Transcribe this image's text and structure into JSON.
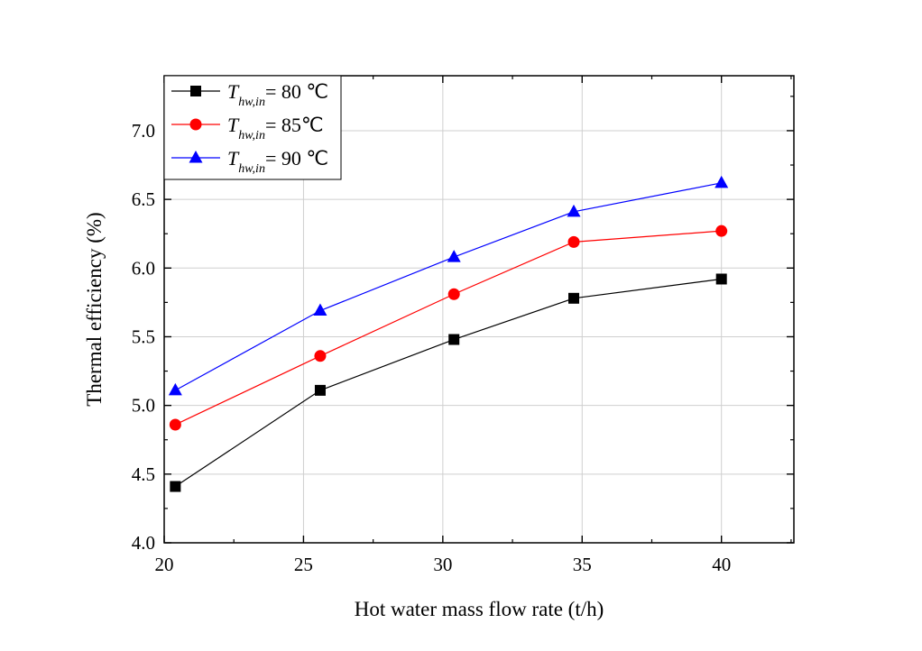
{
  "chart_data": {
    "type": "line",
    "title": "",
    "xlabel": "Hot water mass flow rate (t/h)",
    "ylabel": "Thermal efficiency (%)",
    "xlim": [
      20,
      42.6
    ],
    "ylim": [
      4.0,
      7.4
    ],
    "xticks": [
      "20",
      "25",
      "30",
      "35",
      "40"
    ],
    "yticks": [
      "4.0",
      "4.5",
      "5.0",
      "5.5",
      "6.0",
      "6.5",
      "7.0"
    ],
    "grid": true,
    "legend_position": "top-left",
    "x": [
      20.4,
      25.6,
      30.4,
      34.7,
      40.0
    ],
    "series": [
      {
        "name": "T_hw,in = 80 ℃",
        "legend": {
          "symbol": "T",
          "subscript": "hw,in",
          "value": "= 80 ℃"
        },
        "color": "#000000",
        "marker": "square",
        "values": [
          4.41,
          5.11,
          5.48,
          5.78,
          5.92
        ]
      },
      {
        "name": "T_hw,in = 85℃",
        "legend": {
          "symbol": "T",
          "subscript": "hw,in",
          "value": "= 85℃"
        },
        "color": "#ff0000",
        "marker": "circle",
        "values": [
          4.86,
          5.36,
          5.81,
          6.19,
          6.27
        ]
      },
      {
        "name": "T_hw,in = 90 ℃",
        "legend": {
          "symbol": "T",
          "subscript": "hw,in",
          "value": "= 90 ℃"
        },
        "color": "#0000ff",
        "marker": "triangle",
        "values": [
          5.11,
          5.69,
          6.08,
          6.41,
          6.62
        ]
      }
    ]
  }
}
